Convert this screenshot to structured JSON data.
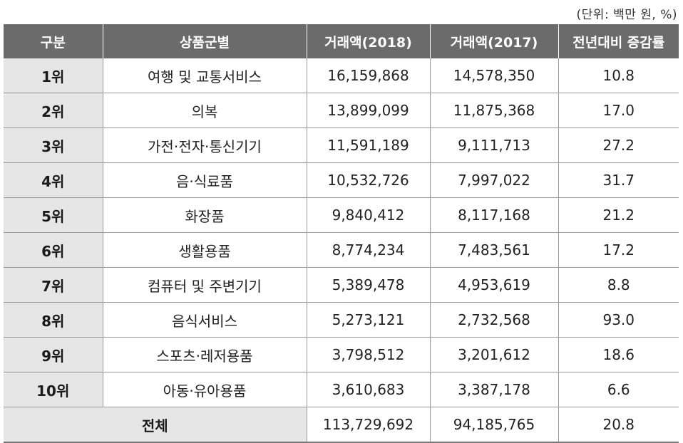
{
  "unit_note": "(단위: 백만 원, %)",
  "headers": {
    "rank": "구분",
    "category": "상품군별",
    "volume_2018": "거래액(2018)",
    "volume_2017": "거래액(2017)",
    "growth_rate": "전년대비 증감률"
  },
  "rows": [
    {
      "rank": "1위",
      "category": "여행 및 교통서비스",
      "v2018": "16,159,868",
      "v2017": "14,578,350",
      "rate": "10.8"
    },
    {
      "rank": "2위",
      "category": "의복",
      "v2018": "13,899,099",
      "v2017": "11,875,368",
      "rate": "17.0"
    },
    {
      "rank": "3위",
      "category": "가전·전자·통신기기",
      "v2018": "11,591,189",
      "v2017": "9,111,713",
      "rate": "27.2"
    },
    {
      "rank": "4위",
      "category": "음·식료품",
      "v2018": "10,532,726",
      "v2017": "7,997,022",
      "rate": "31.7"
    },
    {
      "rank": "5위",
      "category": "화장품",
      "v2018": "9,840,412",
      "v2017": "8,117,168",
      "rate": "21.2"
    },
    {
      "rank": "6위",
      "category": "생활용품",
      "v2018": "8,774,234",
      "v2017": "7,483,561",
      "rate": "17.2"
    },
    {
      "rank": "7위",
      "category": "컴퓨터 및 주변기기",
      "v2018": "5,389,478",
      "v2017": "4,953,619",
      "rate": "8.8"
    },
    {
      "rank": "8위",
      "category": "음식서비스",
      "v2018": "5,273,121",
      "v2017": "2,732,568",
      "rate": "93.0"
    },
    {
      "rank": "9위",
      "category": "스포츠·레저용품",
      "v2018": "3,798,512",
      "v2017": "3,201,612",
      "rate": "18.6"
    },
    {
      "rank": "10위",
      "category": "아동·유아용품",
      "v2018": "3,610,683",
      "v2017": "3,387,178",
      "rate": "6.6"
    }
  ],
  "total": {
    "label": "전체",
    "v2018": "113,729,692",
    "v2017": "94,185,765",
    "rate": "20.8"
  }
}
